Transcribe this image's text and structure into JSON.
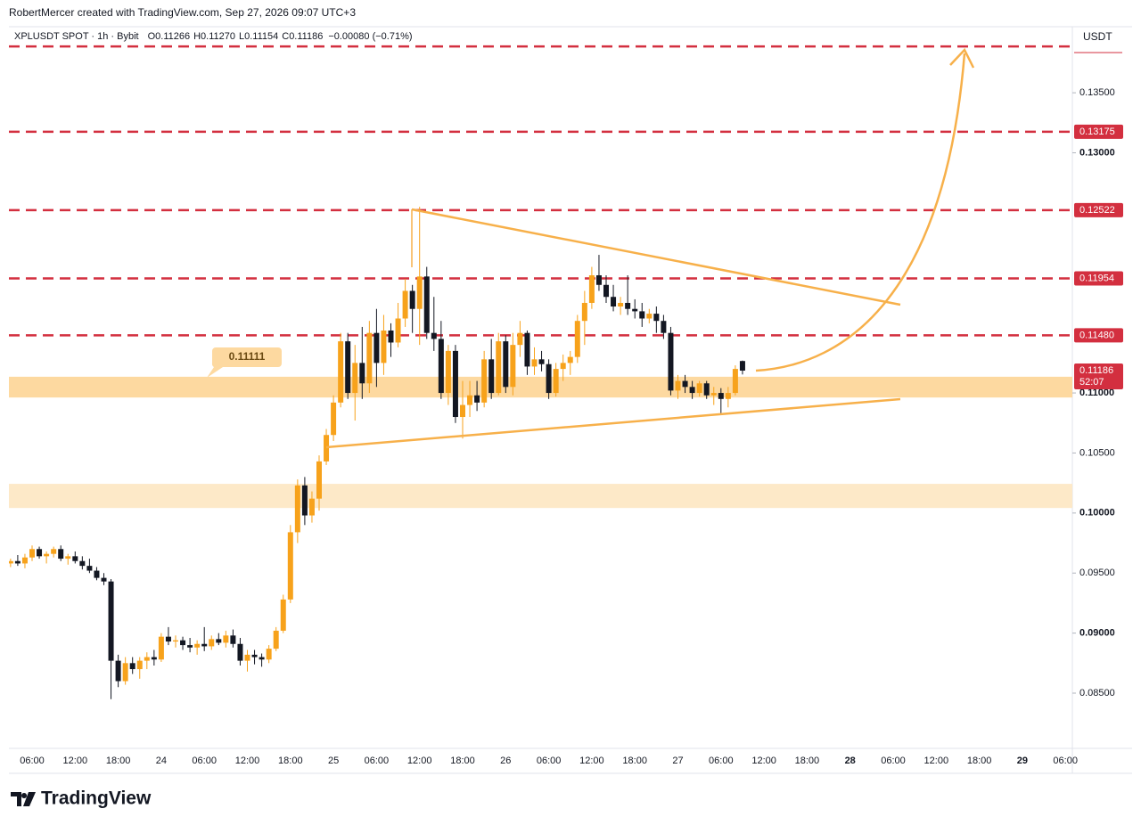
{
  "header": {
    "credit": "RobertMercer created with TradingView.com, Sep 27, 2026 09:07 UTC+3",
    "logo": "TradingView"
  },
  "chart_data": {
    "type": "candlestick",
    "symbol": "XPLUSDT SPOT · 1h · Bybit",
    "stats": [
      "O0.11266",
      "H0.11270",
      "L0.11154",
      "C0.11186",
      "−0.00080 (−0.71%)"
    ],
    "currency": "USDT",
    "up_color": "#f7a21b",
    "down_color": "#131722",
    "ylim": [
      0.0804,
      0.1405
    ],
    "yticks": [
      {
        "value": 0.135,
        "label": "0.13500"
      },
      {
        "value": 0.13,
        "label": "0.13000"
      },
      {
        "value": 0.11,
        "label": "0.11000"
      },
      {
        "value": 0.105,
        "label": "0.10500"
      },
      {
        "value": 0.1,
        "label": "0.10000"
      },
      {
        "value": 0.095,
        "label": "0.09500"
      },
      {
        "value": 0.09,
        "label": "0.09000"
      },
      {
        "value": 0.085,
        "label": "0.08500"
      }
    ],
    "xticks": [
      "06:00",
      "12:00",
      "18:00",
      "24",
      "06:00",
      "12:00",
      "18:00",
      "25",
      "06:00",
      "12:00",
      "18:00",
      "26",
      "06:00",
      "12:00",
      "18:00",
      "27",
      "06:00",
      "12:00",
      "18:00",
      "28",
      "06:00",
      "12:00",
      "18:00",
      "29",
      "06:00"
    ],
    "levels": [
      0.13886,
      0.13175,
      0.12522,
      0.11954,
      0.1148
    ],
    "level_labels": [
      null,
      "0.13175",
      "0.12522",
      "0.11954",
      "0.11480"
    ],
    "level_color": "#d32f3f",
    "zones": [
      {
        "from": 0.10962,
        "to": 0.11135,
        "color": "#fdd9a0"
      },
      {
        "from": 0.10042,
        "to": 0.10243,
        "color": "#fde9c8"
      }
    ],
    "annotation": "0.11111",
    "last_price_label": "0.11186",
    "countdown": "52:07",
    "candles": [
      [
        0.0958,
        0.0962,
        0.0955,
        0.096
      ],
      [
        0.096,
        0.0965,
        0.0956,
        0.0958
      ],
      [
        0.0958,
        0.0966,
        0.0954,
        0.0963
      ],
      [
        0.0963,
        0.0973,
        0.096,
        0.097
      ],
      [
        0.097,
        0.0972,
        0.0962,
        0.0964
      ],
      [
        0.0964,
        0.0968,
        0.0958,
        0.0966
      ],
      [
        0.0966,
        0.0972,
        0.0963,
        0.097
      ],
      [
        0.097,
        0.0973,
        0.096,
        0.0962
      ],
      [
        0.0962,
        0.0966,
        0.0957,
        0.0964
      ],
      [
        0.0964,
        0.0968,
        0.0958,
        0.096
      ],
      [
        0.096,
        0.0964,
        0.0953,
        0.0956
      ],
      [
        0.0956,
        0.0962,
        0.095,
        0.0952
      ],
      [
        0.0952,
        0.0955,
        0.0944,
        0.0946
      ],
      [
        0.0946,
        0.095,
        0.094,
        0.0943
      ],
      [
        0.0943,
        0.0945,
        0.0845,
        0.0877
      ],
      [
        0.0877,
        0.0882,
        0.0855,
        0.086
      ],
      [
        0.086,
        0.088,
        0.0857,
        0.0875
      ],
      [
        0.0875,
        0.088,
        0.0866,
        0.087
      ],
      [
        0.087,
        0.088,
        0.0862,
        0.0877
      ],
      [
        0.0877,
        0.0884,
        0.087,
        0.088
      ],
      [
        0.088,
        0.0886,
        0.0873,
        0.0878
      ],
      [
        0.0878,
        0.09,
        0.0876,
        0.0897
      ],
      [
        0.0897,
        0.0905,
        0.089,
        0.0893
      ],
      [
        0.0893,
        0.0898,
        0.0888,
        0.0894
      ],
      [
        0.0894,
        0.0897,
        0.0886,
        0.089
      ],
      [
        0.089,
        0.0896,
        0.0884,
        0.0888
      ],
      [
        0.0888,
        0.0894,
        0.0882,
        0.0891
      ],
      [
        0.0891,
        0.0905,
        0.0885,
        0.0889
      ],
      [
        0.0889,
        0.0898,
        0.0886,
        0.0895
      ],
      [
        0.0895,
        0.09,
        0.089,
        0.0892
      ],
      [
        0.0892,
        0.0902,
        0.0888,
        0.0898
      ],
      [
        0.0898,
        0.0903,
        0.0888,
        0.0891
      ],
      [
        0.0891,
        0.0896,
        0.0873,
        0.0877
      ],
      [
        0.0877,
        0.0886,
        0.0868,
        0.0882
      ],
      [
        0.0882,
        0.0886,
        0.0874,
        0.088
      ],
      [
        0.088,
        0.0883,
        0.0872,
        0.0878
      ],
      [
        0.0878,
        0.089,
        0.0875,
        0.0887
      ],
      [
        0.0887,
        0.0905,
        0.0885,
        0.0902
      ],
      [
        0.0902,
        0.0932,
        0.09,
        0.0928
      ],
      [
        0.0928,
        0.099,
        0.0925,
        0.0984
      ],
      [
        0.0984,
        0.1028,
        0.0975,
        0.1023
      ],
      [
        0.1023,
        0.103,
        0.099,
        0.0998
      ],
      [
        0.0998,
        0.1018,
        0.0992,
        0.1012
      ],
      [
        0.1012,
        0.1048,
        0.1002,
        0.1043
      ],
      [
        0.1043,
        0.107,
        0.104,
        0.1065
      ],
      [
        0.1065,
        0.1098,
        0.106,
        0.1092
      ],
      [
        0.1092,
        0.115,
        0.1088,
        0.1143
      ],
      [
        0.1143,
        0.115,
        0.1095,
        0.11
      ],
      [
        0.11,
        0.114,
        0.1077,
        0.1125
      ],
      [
        0.1125,
        0.1155,
        0.1095,
        0.1108
      ],
      [
        0.1108,
        0.116,
        0.11,
        0.115
      ],
      [
        0.115,
        0.117,
        0.1105,
        0.1125
      ],
      [
        0.1125,
        0.1165,
        0.1115,
        0.1152
      ],
      [
        0.1152,
        0.1158,
        0.113,
        0.1142
      ],
      [
        0.1142,
        0.1175,
        0.1138,
        0.1162
      ],
      [
        0.1162,
        0.1195,
        0.1155,
        0.1185
      ],
      [
        0.1185,
        0.119,
        0.115,
        0.117
      ],
      [
        0.117,
        0.1255,
        0.114,
        0.1197
      ],
      [
        0.1197,
        0.1205,
        0.1145,
        0.115
      ],
      [
        0.115,
        0.118,
        0.1135,
        0.1145
      ],
      [
        0.1145,
        0.116,
        0.1095,
        0.11
      ],
      [
        0.11,
        0.114,
        0.109,
        0.1135
      ],
      [
        0.1135,
        0.114,
        0.1075,
        0.108
      ],
      [
        0.108,
        0.111,
        0.1062,
        0.109
      ],
      [
        0.109,
        0.111,
        0.108,
        0.1098
      ],
      [
        0.1098,
        0.111,
        0.1085,
        0.1092
      ],
      [
        0.1092,
        0.1135,
        0.1088,
        0.1128
      ],
      [
        0.1128,
        0.1145,
        0.1095,
        0.11
      ],
      [
        0.11,
        0.115,
        0.1098,
        0.1143
      ],
      [
        0.1143,
        0.1148,
        0.11,
        0.1105
      ],
      [
        0.1105,
        0.115,
        0.1098,
        0.114
      ],
      [
        0.114,
        0.116,
        0.113,
        0.115
      ],
      [
        0.115,
        0.1152,
        0.1115,
        0.1122
      ],
      [
        0.1122,
        0.1138,
        0.1115,
        0.1128
      ],
      [
        0.1128,
        0.1135,
        0.1118,
        0.1124
      ],
      [
        0.1124,
        0.1128,
        0.1095,
        0.11
      ],
      [
        0.11,
        0.1125,
        0.1097,
        0.112
      ],
      [
        0.112,
        0.1132,
        0.111,
        0.1125
      ],
      [
        0.1125,
        0.1135,
        0.1115,
        0.113
      ],
      [
        0.113,
        0.1165,
        0.1125,
        0.116
      ],
      [
        0.116,
        0.1185,
        0.114,
        0.1175
      ],
      [
        0.1175,
        0.1205,
        0.117,
        0.1198
      ],
      [
        0.1198,
        0.1215,
        0.1185,
        0.119
      ],
      [
        0.119,
        0.1198,
        0.1175,
        0.118
      ],
      [
        0.118,
        0.119,
        0.1168,
        0.1172
      ],
      [
        0.1172,
        0.118,
        0.1165,
        0.1175
      ],
      [
        0.1175,
        0.1198,
        0.1165,
        0.117
      ],
      [
        0.117,
        0.1178,
        0.1162,
        0.1168
      ],
      [
        0.1168,
        0.1175,
        0.1155,
        0.1162
      ],
      [
        0.1162,
        0.117,
        0.1158,
        0.1166
      ],
      [
        0.1166,
        0.1172,
        0.115,
        0.116
      ],
      [
        0.116,
        0.1165,
        0.1145,
        0.115
      ],
      [
        0.115,
        0.1155,
        0.1098,
        0.1102
      ],
      [
        0.1102,
        0.1115,
        0.1095,
        0.111
      ],
      [
        0.111,
        0.1115,
        0.11,
        0.1105
      ],
      [
        0.1105,
        0.111,
        0.1095,
        0.11
      ],
      [
        0.11,
        0.111,
        0.1097,
        0.1108
      ],
      [
        0.1108,
        0.111,
        0.1095,
        0.1098
      ],
      [
        0.1098,
        0.1105,
        0.109,
        0.11
      ],
      [
        0.11,
        0.1104,
        0.1082,
        0.1095
      ],
      [
        0.1095,
        0.1105,
        0.1088,
        0.11
      ],
      [
        0.11,
        0.1123,
        0.1098,
        0.112
      ],
      [
        0.11266,
        0.1127,
        0.11154,
        0.11186
      ]
    ]
  }
}
